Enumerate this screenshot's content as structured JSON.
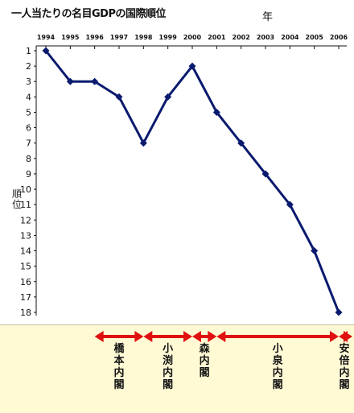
{
  "chart_data": {
    "type": "line",
    "title": "一人当たりの名目GDPの国際順位",
    "xlabel": "年",
    "ylabel": "順位",
    "x": [
      "1994",
      "1995",
      "1996",
      "1997",
      "1998",
      "1999",
      "2000",
      "2001",
      "2002",
      "2003",
      "2004",
      "2005",
      "2006"
    ],
    "series": [
      {
        "values": [
          1,
          3,
          3,
          4,
          7,
          4,
          2,
          5,
          7,
          9,
          11,
          14,
          18
        ]
      }
    ],
    "ylim": [
      1,
      18
    ],
    "y_inverted": true,
    "y_ticks": [
      1,
      2,
      3,
      4,
      5,
      6,
      7,
      8,
      9,
      10,
      11,
      12,
      13,
      14,
      15,
      16,
      17,
      18
    ],
    "grid": false,
    "line_color": "#0a1a6e",
    "marker": "diamond"
  },
  "cabinets": [
    {
      "label": "橋本内閣",
      "start": "1996",
      "end": "1998"
    },
    {
      "label": "小渕内閣",
      "start": "1998",
      "end": "2000"
    },
    {
      "label": "森内閣",
      "start": "2000",
      "end": "2001"
    },
    {
      "label": "小泉内閣",
      "start": "2001",
      "end": "2006"
    },
    {
      "label": "安倍内閣",
      "start": "2006",
      "end": "2006+"
    }
  ],
  "colors": {
    "axis": "#111111",
    "line": "#0a1a6e",
    "arrow": "#e01010",
    "panel_bg": "#fff9d4"
  }
}
